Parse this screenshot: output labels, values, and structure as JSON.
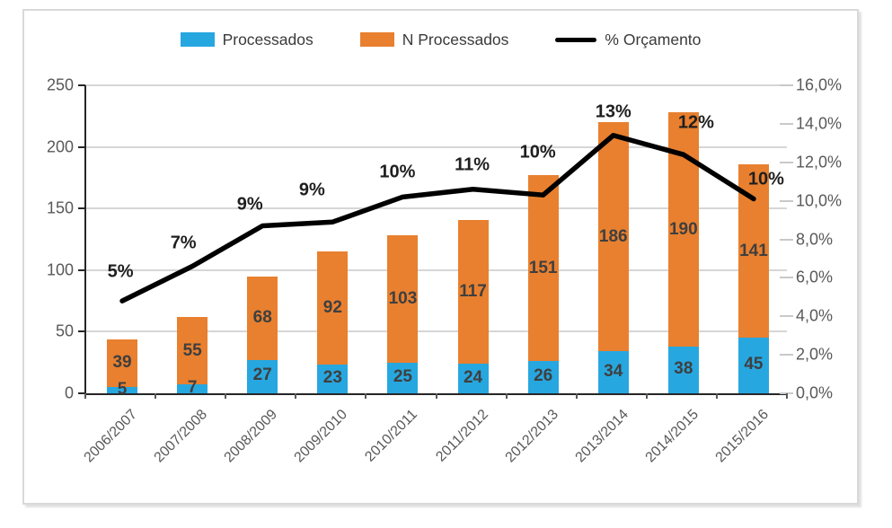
{
  "chart_data": {
    "type": "combo-stacked-bar-line",
    "categories": [
      "2006/2007",
      "2007/2008",
      "2008/2009",
      "2009/2010",
      "2010/2011",
      "2011/2012",
      "2012/2013",
      "2013/2014",
      "2014/2015",
      "2015/2016"
    ],
    "series": [
      {
        "name": "Processados",
        "type": "bar",
        "stack": true,
        "color": "#27a7e0",
        "values": [
          5,
          7,
          27,
          23,
          25,
          24,
          26,
          34,
          38,
          45
        ]
      },
      {
        "name": "N Processados",
        "type": "bar",
        "stack": true,
        "color": "#e8802f",
        "values": [
          39,
          55,
          68,
          92,
          103,
          117,
          151,
          186,
          190,
          141
        ]
      },
      {
        "name": "% Orçamento",
        "type": "line",
        "axis": "right",
        "color": "#000000",
        "values": [
          5,
          7,
          9,
          9,
          10,
          11,
          10,
          13,
          12,
          10
        ],
        "point_labels": [
          "5%",
          "7%",
          "9%",
          "9%",
          "10%",
          "11%",
          "10%",
          "13%",
          "12%",
          "10%"
        ],
        "values_precise": [
          4.8,
          6.6,
          8.7,
          8.9,
          10.2,
          10.6,
          10.3,
          13.4,
          12.4,
          10.1
        ]
      }
    ],
    "left_axis": {
      "min": 0,
      "max": 250,
      "step": 50,
      "tick_labels": [
        "0",
        "50",
        "100",
        "150",
        "200",
        "250"
      ]
    },
    "right_axis": {
      "min": 0,
      "max": 16,
      "step": 2,
      "tick_labels": [
        "0,0%",
        "2,0%",
        "4,0%",
        "6,0%",
        "8,0%",
        "10,0%",
        "12,0%",
        "14,0%",
        "16,0%"
      ]
    },
    "title": "",
    "xlabel": "",
    "ylabel": "",
    "grid": true,
    "legend_position": "top",
    "colors": {
      "bar_blue": "#27a7e0",
      "bar_orange": "#e8802f",
      "line_black": "#000000",
      "gridline": "#d6d6d6",
      "axis_text": "#595959",
      "data_label": "#3f3f3f"
    }
  }
}
